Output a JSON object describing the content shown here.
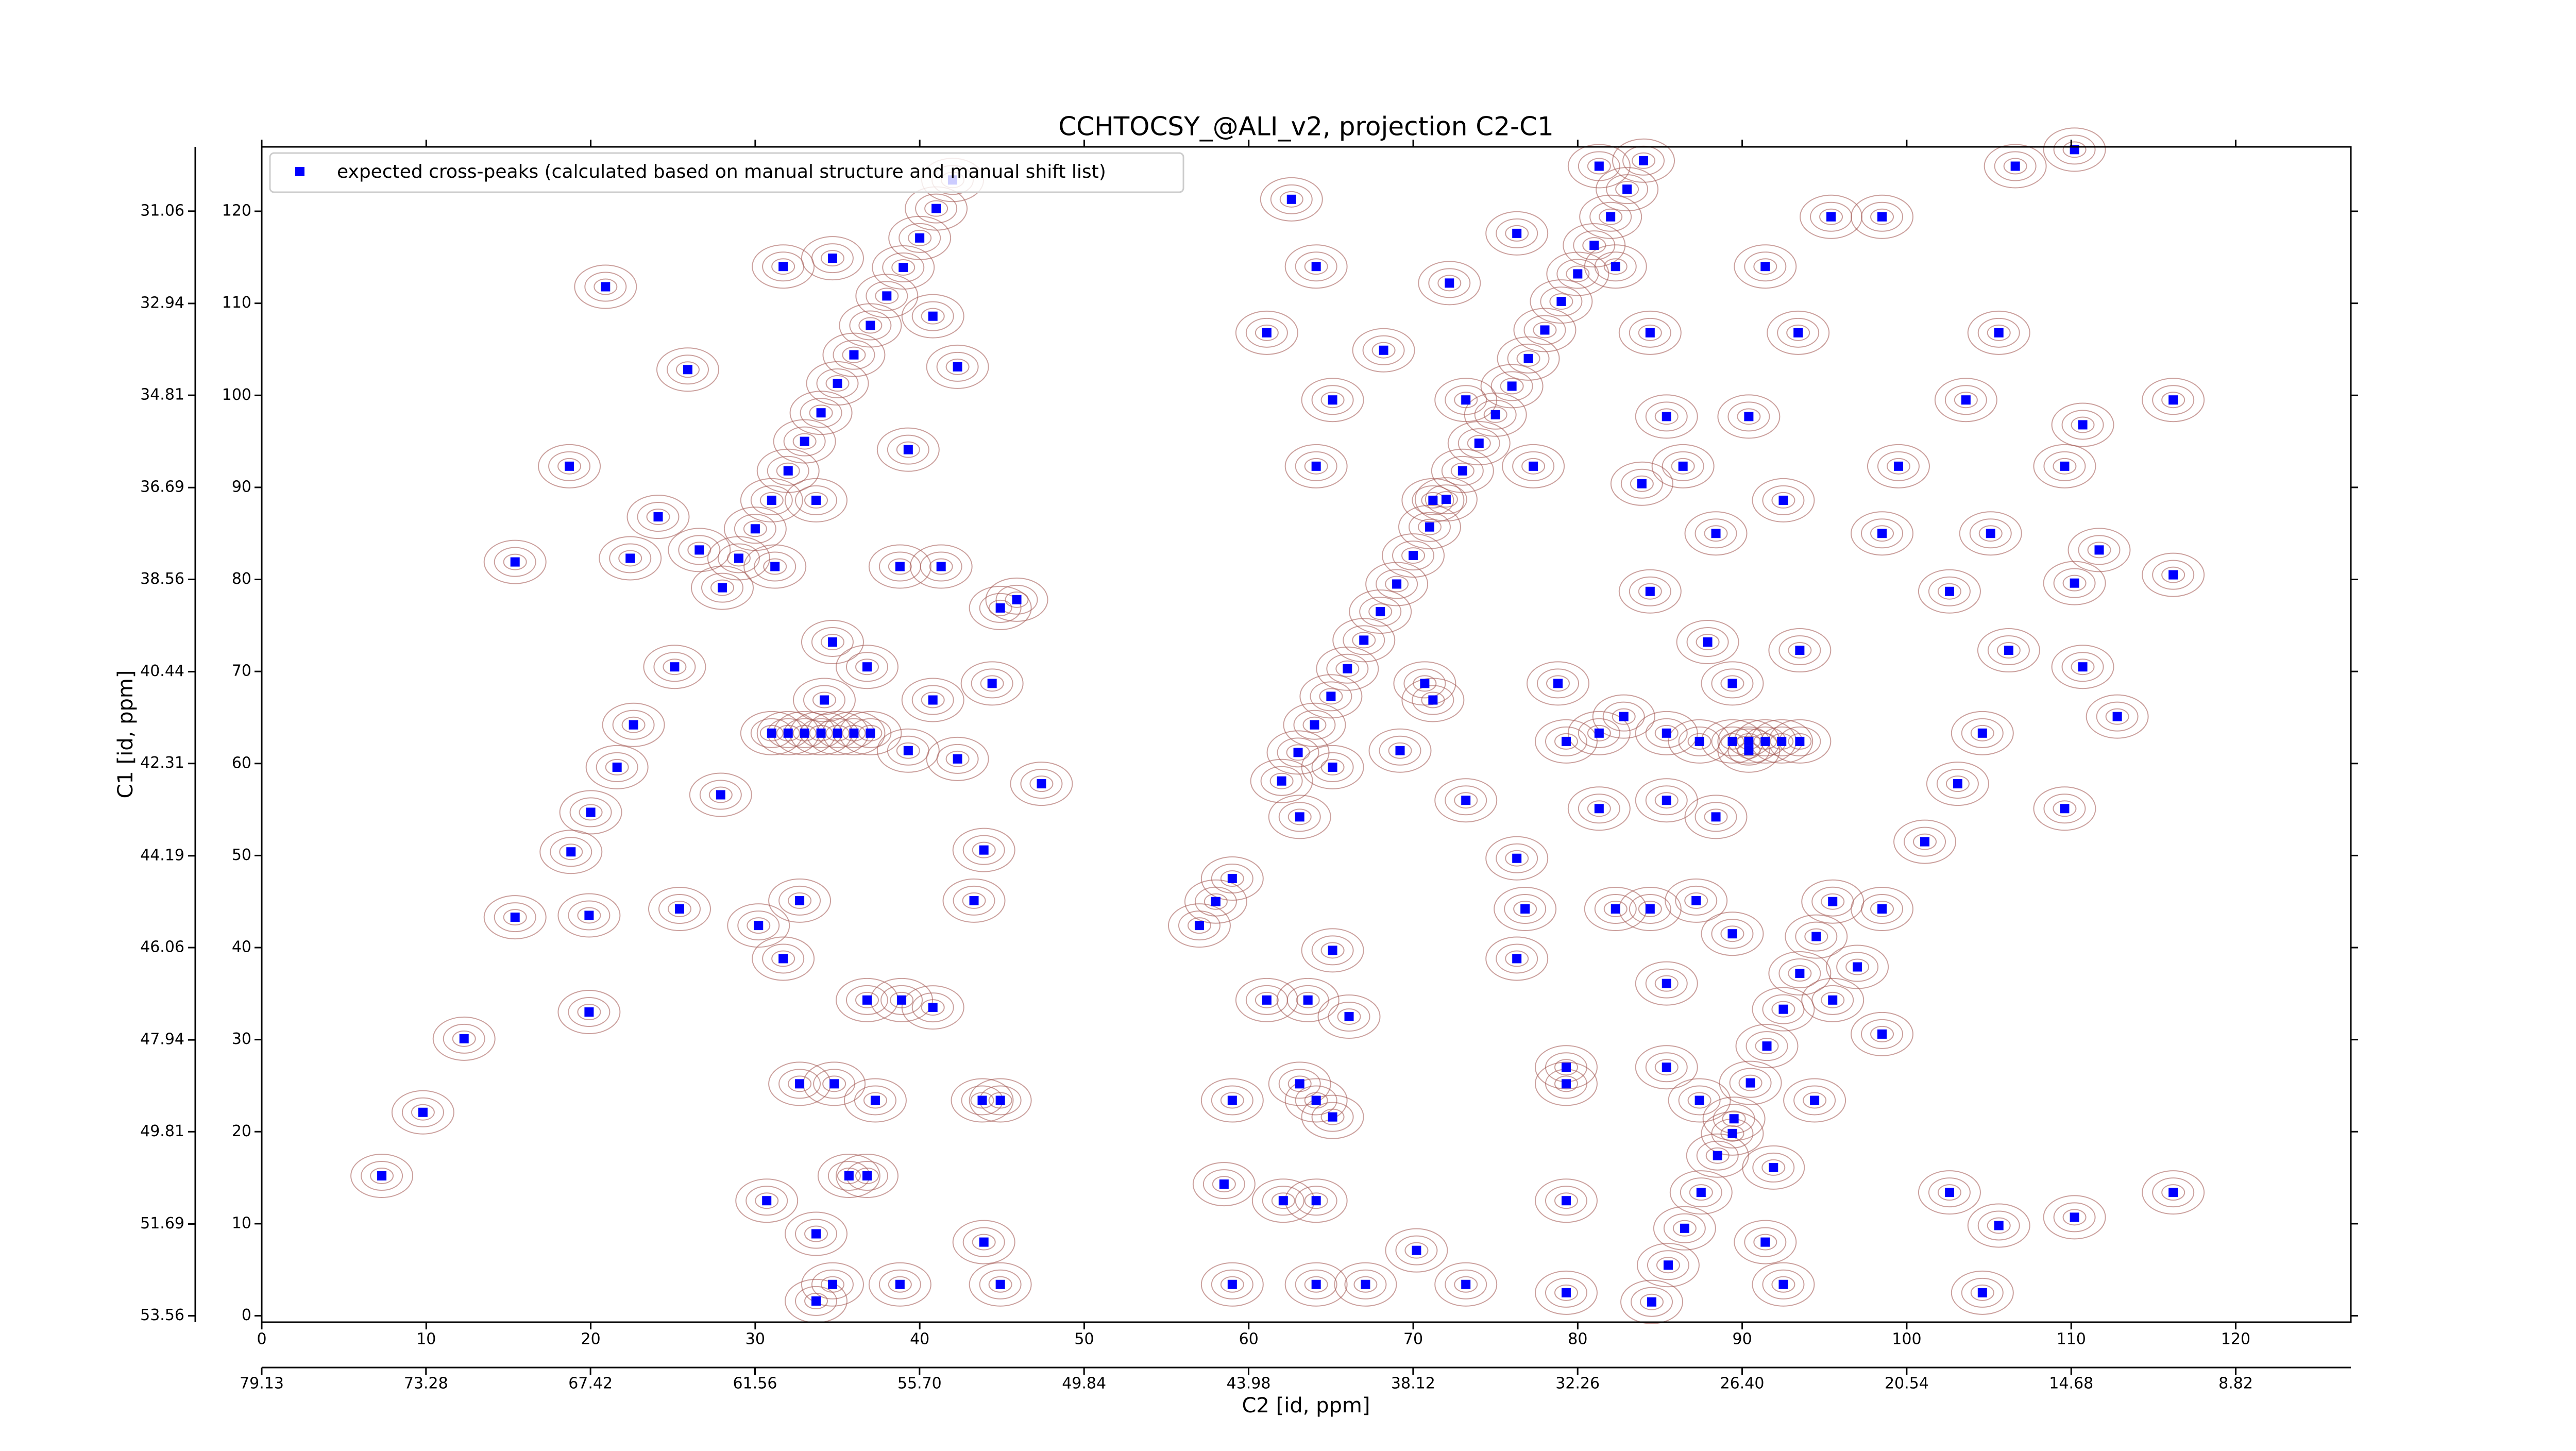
{
  "chart_data": {
    "type": "scatter",
    "title": "CCHTOCSY_@ALI_v2, projection C2-C1",
    "xlabel": "C2 [id, ppm]",
    "ylabel": "C1 [id, ppm]",
    "xlim": [
      0,
      127
    ],
    "ylim": [
      -0.7,
      127
    ],
    "xticks": [
      0,
      10,
      20,
      30,
      40,
      50,
      60,
      70,
      80,
      90,
      100,
      110,
      120
    ],
    "yticks": [
      0,
      10,
      20,
      30,
      40,
      50,
      60,
      70,
      80,
      90,
      100,
      110,
      120
    ],
    "x2lim": [
      79.13,
      4.72
    ],
    "x2ticks": [
      79.13,
      73.28,
      67.42,
      61.56,
      {
        "value": 55.7,
        "label": "55.70"
      },
      49.84,
      43.98,
      38.12,
      32.26,
      {
        "value": 26.4,
        "label": "26.40"
      },
      20.54,
      14.68,
      8.82
    ],
    "y2lim": [
      53.69,
      29.75
    ],
    "y2ticks": [
      53.56,
      51.69,
      49.81,
      47.94,
      46.06,
      44.19,
      42.31,
      40.44,
      38.56,
      36.69,
      34.81,
      32.94,
      31.06
    ],
    "legend": "upper left",
    "contour_color": "#a0524d",
    "series": [
      {
        "name": "expected cross-peaks (calculated based on manual structure and manual shift list)",
        "color": "#0000ff",
        "x": [
          28,
          29,
          30,
          31,
          32,
          33,
          34,
          35,
          36,
          37,
          38,
          39,
          40,
          41,
          42,
          62,
          63,
          64,
          65,
          66,
          67,
          68,
          69,
          70,
          71,
          72,
          73,
          74,
          75,
          76,
          77,
          78,
          79,
          80,
          81,
          82,
          83,
          84,
          57,
          58,
          59,
          84.5,
          85.5,
          86.5,
          87.5,
          88.5,
          89.5,
          90.5,
          91.5,
          92.5,
          93.5,
          94.5,
          95.5,
          31,
          32,
          33,
          34,
          35,
          36,
          37,
          89.4,
          90.4,
          91.4,
          92.4,
          93.5,
          15.4,
          20.9,
          25.9,
          18.7,
          7.3,
          9.8,
          12.3,
          15.4,
          19.9,
          19.9,
          25.4,
          18.8,
          27.9,
          44.9,
          32.7,
          30.2,
          31.7,
          38.9,
          40.8,
          36.8,
          37.3,
          34.8,
          32.7,
          43.8,
          44.9,
          35.7,
          36.8,
          33.7,
          34.7,
          38.8,
          44.9,
          43.9,
          30.7,
          33.7,
          31.7,
          34.7,
          40.8,
          42.3,
          39.3,
          33.7,
          24.1,
          22.4,
          26.6,
          31.2,
          38.8,
          41.3,
          45.9,
          34.7,
          36.8,
          34.2,
          39.3,
          40.8,
          44.4,
          42.3,
          47.4,
          43.9,
          43.3,
          22.6,
          25.1,
          20,
          21.6,
          62.6,
          64.1,
          61.1,
          65.1,
          64.1,
          68.2,
          72.2,
          73.2,
          71.2,
          76.3,
          77.3,
          81.3,
          82.3,
          84.4,
          85.4,
          86.4,
          83.9,
          88.4,
          90.4,
          91.4,
          93.4,
          95.4,
          98.5,
          92.5,
          98.5,
          99.5,
          103.6,
          106.6,
          110.2,
          105.6,
          110.7,
          116.2,
          109.6,
          111.7,
          110.2,
          105.1,
          102.6,
          106.2,
          110.7,
          112.8,
          104.6,
          103.1,
          109.6,
          116.2,
          101.1,
          98.5,
          97,
          95.5,
          98.5,
          102.6,
          105.6,
          110.2,
          116.2,
          104.6,
          71.2,
          73.2,
          76.3,
          76.8,
          76.3,
          82.3,
          84.4,
          87.2,
          89.4,
          85.4,
          79.3,
          79.3,
          85.4,
          87.4,
          89.4,
          91.9,
          94.4,
          91.4,
          92.5,
          79.3,
          79.3,
          73.2,
          70.2,
          67.1,
          64.1,
          62.1,
          64.1,
          63.1,
          64.1,
          65.1,
          63.6,
          66.1,
          59,
          58.5,
          59,
          81.3,
          82.8,
          87.4,
          85.4,
          89.4,
          93.5,
          87.9,
          84.4,
          85.4,
          88.4,
          90.4,
          81.3,
          79.3,
          78.8,
          63.1,
          65.1,
          69.2,
          70.7,
          65.1,
          61.1
        ],
        "values": [
          79.1,
          82.3,
          85.5,
          88.6,
          91.8,
          95,
          98.1,
          101.3,
          104.4,
          107.6,
          110.8,
          113.9,
          117.1,
          120.3,
          123.4,
          58.1,
          61.2,
          64.2,
          67.3,
          70.3,
          73.4,
          76.5,
          79.5,
          82.6,
          85.7,
          88.7,
          91.8,
          94.8,
          97.9,
          101,
          104,
          107.1,
          110.2,
          113.2,
          116.3,
          119.4,
          122.4,
          125.5,
          42.4,
          45,
          47.5,
          1.5,
          5.5,
          9.5,
          13.4,
          17.4,
          21.4,
          25.3,
          29.3,
          33.3,
          37.2,
          41.2,
          45,
          63.3,
          63.3,
          63.3,
          63.3,
          63.3,
          63.3,
          63.3,
          62.4,
          62.4,
          62.4,
          62.4,
          62.4,
          81.9,
          111.8,
          102.8,
          92.3,
          15.2,
          22.1,
          30.1,
          43.3,
          43.5,
          33,
          44.2,
          50.4,
          56.6,
          76.9,
          45.1,
          42.4,
          38.8,
          34.3,
          33.5,
          34.3,
          23.4,
          25.2,
          25.2,
          23.4,
          23.4,
          15.2,
          15.2,
          8.9,
          3.4,
          3.4,
          3.4,
          8,
          12.5,
          1.6,
          114,
          114.9,
          108.6,
          103.1,
          94.1,
          88.6,
          86.8,
          82.3,
          83.2,
          81.4,
          81.4,
          81.4,
          77.8,
          73.2,
          70.5,
          66.9,
          61.4,
          66.9,
          68.7,
          60.5,
          57.8,
          50.6,
          45.1,
          64.2,
          70.5,
          54.7,
          59.6,
          121.3,
          114,
          106.8,
          99.5,
          92.3,
          104.9,
          112.2,
          99.5,
          88.6,
          117.6,
          92.3,
          124.9,
          114,
          106.8,
          97.7,
          92.3,
          90.4,
          85,
          97.7,
          114,
          106.8,
          119.4,
          119.4,
          88.6,
          85,
          92.3,
          99.5,
          124.9,
          126.7,
          106.8,
          96.8,
          99.5,
          92.3,
          83.2,
          79.6,
          85,
          78.7,
          72.3,
          70.5,
          65.1,
          63.3,
          57.8,
          55.1,
          80.5,
          51.5,
          44.2,
          37.9,
          34.3,
          30.6,
          13.4,
          9.8,
          10.7,
          13.4,
          2.5,
          66.9,
          56,
          49.7,
          44.2,
          38.8,
          44.2,
          44.2,
          45.1,
          41.5,
          36.1,
          27,
          25.2,
          27,
          23.4,
          19.8,
          16.1,
          23.4,
          8,
          3.4,
          12.5,
          2.5,
          3.4,
          7.1,
          3.4,
          3.4,
          12.5,
          12.5,
          25.2,
          23.4,
          21.6,
          34.3,
          32.5,
          23.4,
          14.3,
          3.4,
          63.3,
          65.1,
          62.4,
          63.3,
          68.7,
          72.3,
          73.2,
          78.7,
          56,
          54.2,
          61.4,
          55.1,
          62.4,
          68.7,
          54.2,
          59.6,
          61.4,
          68.7,
          39.7,
          34.3
        ]
      }
    ]
  }
}
